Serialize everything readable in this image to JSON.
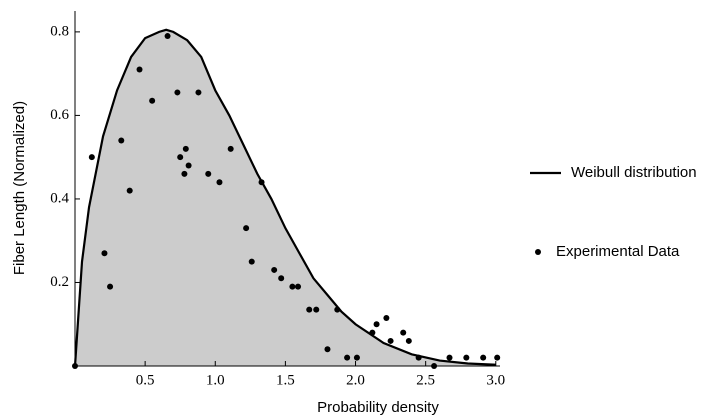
{
  "chart_data": {
    "type": "line",
    "x_label": "Probability density",
    "y_label": "Fiber Length (Normalized)",
    "xlim": [
      0,
      3.03
    ],
    "ylim": [
      0,
      0.85
    ],
    "xticks": [
      0.5,
      {
        "value": 1,
        "label": "1.0"
      },
      1.5,
      {
        "value": 2,
        "label": "2.0"
      },
      2.5,
      {
        "value": 3,
        "label": "3.0"
      }
    ],
    "yticks": [
      0.2,
      0.4,
      0.6,
      0.8
    ],
    "grid": false,
    "legend": "right",
    "series": [
      {
        "name": "Weibull distribution",
        "type": "area",
        "color": "#000000",
        "fill_color": "#cccccc",
        "x": [
          0,
          0.05,
          0.1,
          0.2,
          0.3,
          0.4,
          0.5,
          0.6,
          0.65,
          0.7,
          0.8,
          0.9,
          1.0,
          1.1,
          1.2,
          1.3,
          1.4,
          1.5,
          1.6,
          1.7,
          1.8,
          1.9,
          2.0,
          2.2,
          2.4,
          2.6,
          2.8,
          3.0
        ],
        "values": [
          0,
          0.25,
          0.38,
          0.55,
          0.66,
          0.74,
          0.785,
          0.8,
          0.805,
          0.8,
          0.78,
          0.74,
          0.66,
          0.6,
          0.53,
          0.46,
          0.4,
          0.33,
          0.27,
          0.21,
          0.17,
          0.13,
          0.1,
          0.055,
          0.028,
          0.013,
          0.006,
          0.003
        ]
      },
      {
        "name": "Experimental Data",
        "type": "scatter",
        "color": "#000000",
        "x": [
          0,
          0.12,
          0.21,
          0.25,
          0.33,
          0.39,
          0.46,
          0.55,
          0.66,
          0.73,
          0.75,
          0.78,
          0.79,
          0.81,
          0.88,
          0.95,
          1.03,
          1.11,
          1.22,
          1.26,
          1.33,
          1.42,
          1.47,
          1.55,
          1.59,
          1.67,
          1.72,
          1.8,
          1.87,
          1.94,
          2.01,
          2.12,
          2.15,
          2.22,
          2.25,
          2.34,
          2.38,
          2.45,
          2.56,
          2.67,
          2.79,
          2.91,
          3.01
        ],
        "values": [
          0,
          0.5,
          0.27,
          0.19,
          0.54,
          0.42,
          0.71,
          0.635,
          0.79,
          0.655,
          0.5,
          0.46,
          0.52,
          0.48,
          0.655,
          0.46,
          0.44,
          0.52,
          0.33,
          0.25,
          0.44,
          0.23,
          0.21,
          0.19,
          0.19,
          0.135,
          0.135,
          0.04,
          0.135,
          0.02,
          0.02,
          0.08,
          0.1,
          0.115,
          0.06,
          0.08,
          0.06,
          0.02,
          0,
          0.02,
          0.02,
          0.02,
          0.02
        ]
      }
    ]
  }
}
